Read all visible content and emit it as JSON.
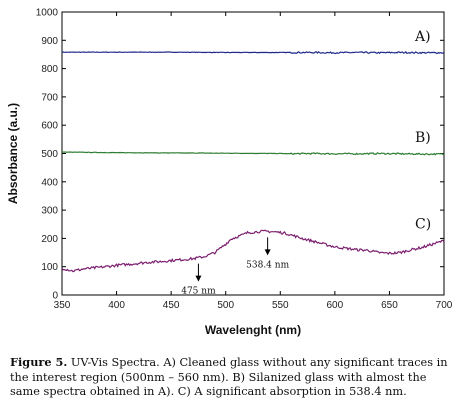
{
  "chart_data": {
    "type": "line",
    "xlabel": "Wavelenght (nm)",
    "ylabel": "Absorbance (a.u.)",
    "xlim": [
      350,
      700
    ],
    "ylim": [
      0,
      1000
    ],
    "xticks": [
      350,
      400,
      450,
      500,
      550,
      600,
      650,
      700
    ],
    "yticks": [
      0,
      100,
      200,
      300,
      400,
      500,
      600,
      700,
      800,
      900,
      1000
    ],
    "series": [
      {
        "name": "A)",
        "color": "#1f2a8a",
        "x": [
          350,
          400,
          450,
          500,
          550,
          560,
          580,
          600,
          620,
          640,
          660,
          680,
          700
        ],
        "y": [
          858,
          858,
          858,
          857,
          857,
          857,
          857,
          856,
          857,
          856,
          857,
          856,
          856
        ]
      },
      {
        "name": "B)",
        "color": "#2e7d32",
        "x": [
          350,
          400,
          450,
          500,
          550,
          560,
          580,
          600,
          620,
          640,
          660,
          680,
          700
        ],
        "y": [
          505,
          503,
          502,
          501,
          500,
          499,
          500,
          499,
          499,
          500,
          499,
          498,
          498
        ]
      },
      {
        "name": "C)",
        "color": "#7b1f6e",
        "x": [
          350,
          360,
          370,
          380,
          390,
          400,
          410,
          420,
          430,
          440,
          450,
          460,
          470,
          475,
          480,
          490,
          500,
          505,
          510,
          515,
          520,
          525,
          530,
          538,
          545,
          550,
          555,
          560,
          570,
          580,
          590,
          600,
          610,
          620,
          630,
          640,
          650,
          660,
          670,
          680,
          690,
          700
        ],
        "y": [
          95,
          85,
          92,
          96,
          100,
          105,
          108,
          112,
          116,
          118,
          122,
          125,
          128,
          132,
          135,
          150,
          180,
          198,
          205,
          212,
          220,
          222,
          224,
          225,
          223,
          221,
          218,
          212,
          200,
          190,
          180,
          170,
          165,
          160,
          158,
          150,
          147,
          150,
          160,
          168,
          180,
          192
        ]
      }
    ],
    "annotations": [
      {
        "text": "475 nm",
        "x": 475,
        "y": 132
      },
      {
        "text": "538.4 nm",
        "x": 538.4,
        "y": 225
      }
    ],
    "grid": false
  },
  "caption": {
    "bold": "Figure 5.",
    "text": " UV-Vis Spectra. A) Cleaned glass without any significant traces in the interest region (500nm – 560 nm). B) Silanized glass with almost the same spectra obtained in A). C) A significant absorption in 538.4 nm."
  }
}
